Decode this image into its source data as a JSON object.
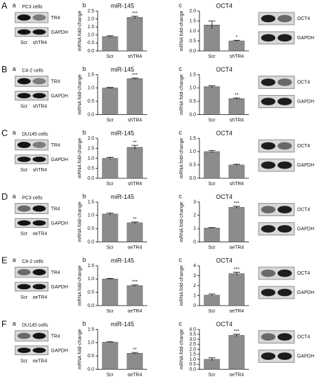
{
  "rows": [
    {
      "letter": "A",
      "panel_a": "a",
      "cells": "PC3 cells",
      "bands": [
        "TR4",
        "GAPDH"
      ],
      "lanes": [
        "Scr",
        "shTR4"
      ],
      "panel_b": "b",
      "panel_c": "c",
      "oct4_bands": [
        "OCT4",
        "GAPDH"
      ]
    },
    {
      "letter": "B",
      "panel_a": "a",
      "cells": "C4-2 cells",
      "bands": [
        "TR4",
        "GAPDH"
      ],
      "lanes": [
        "Scr",
        "shTR4"
      ],
      "panel_b": "b",
      "panel_c": "c",
      "oct4_bands": [
        "OCT4",
        "GAPDH"
      ]
    },
    {
      "letter": "C",
      "panel_a": "a",
      "cells": "DU145 cells",
      "bands": [
        "TR4",
        "GAPDH"
      ],
      "lanes": [
        "Scr",
        "shTR4"
      ],
      "panel_b": "b",
      "panel_c": "c",
      "oct4_bands": [
        "OCT4",
        "GAPDH"
      ]
    },
    {
      "letter": "D",
      "panel_a": "a",
      "cells": "PC3 cells",
      "bands": [
        "TR4",
        "GAPDH"
      ],
      "lanes": [
        "Scr",
        "oeTR4"
      ],
      "panel_b": "b",
      "panel_c": "c",
      "oct4_bands": [
        "OCT4",
        "GAPDH"
      ]
    },
    {
      "letter": "E",
      "panel_a": "a",
      "cells": "C4-2 cells",
      "bands": [
        "TR4",
        "GAPDH"
      ],
      "lanes": [
        "Scr",
        "oeTR4"
      ],
      "panel_b": "b",
      "panel_c": "c",
      "oct4_bands": [
        "OCT4",
        "GAPDH"
      ]
    },
    {
      "letter": "F",
      "panel_a": "a",
      "cells": "DU145 cells",
      "bands": [
        "TR4",
        "GAPDH"
      ],
      "lanes": [
        "Scr",
        "oeTR4"
      ],
      "panel_b": "b",
      "panel_c": "c",
      "oct4_bands": [
        "OCT4",
        "GAPDH"
      ]
    }
  ],
  "chart_data": [
    {
      "type": "bar",
      "title": "miR-145",
      "y_label": "mRNA fold-change",
      "categories": [
        "Scr",
        "shTR4"
      ],
      "values": [
        0.9,
        2.1
      ],
      "errors": [
        0.05,
        0.08
      ],
      "annotation": "***",
      "color": "#8c8c8c",
      "ylim": [
        0,
        2.5
      ],
      "yticks": [
        {
          "value": 0,
          "label": "0.0"
        },
        0.5,
        {
          "value": 1,
          "label": "1.0"
        },
        1.5,
        {
          "value": 2,
          "label": "2.0"
        },
        2.5
      ]
    },
    {
      "type": "bar",
      "title": "OCT4",
      "y_label": "mRNA fold-change",
      "categories": [
        "Scr",
        "shTR4"
      ],
      "values": [
        1.3,
        0.5
      ],
      "errors": [
        0.2,
        0.04
      ],
      "annotation": "*",
      "color": "#8c8c8c",
      "ylim": [
        0,
        2
      ],
      "yticks": [
        {
          "value": 0,
          "label": "0.0"
        },
        0.5,
        {
          "value": 1,
          "label": "1.0"
        },
        1.5,
        {
          "value": 2,
          "label": "2.0"
        }
      ]
    },
    {
      "type": "bar",
      "title": "miR-145",
      "y_label": "mRNA fold-change",
      "categories": [
        "Scr",
        "shTR4"
      ],
      "values": [
        1.0,
        1.35
      ],
      "errors": [
        0.02,
        0.03
      ],
      "annotation": "***",
      "color": "#8c8c8c",
      "ylim": [
        0,
        1.5
      ],
      "yticks": [
        {
          "value": 0,
          "label": "0.0"
        },
        0.5,
        {
          "value": 1,
          "label": "1.0"
        },
        1.5
      ]
    },
    {
      "type": "bar",
      "title": "OCT4",
      "y_label": "mRNA fold-change",
      "categories": [
        "Scr",
        "shTR4"
      ],
      "values": [
        1.05,
        0.6
      ],
      "errors": [
        0.04,
        0.03
      ],
      "annotation": "**",
      "color": "#8c8c8c",
      "ylim": [
        0,
        1.5
      ],
      "yticks": [
        {
          "value": 0,
          "label": "0.0"
        },
        0.5,
        {
          "value": 1,
          "label": "1.0"
        },
        1.5
      ]
    },
    {
      "type": "bar",
      "title": "miR-145",
      "y_label": "mRNA fold-change",
      "categories": [
        "Scr",
        "shTR4"
      ],
      "values": [
        1.0,
        1.55
      ],
      "errors": [
        0.05,
        0.1
      ],
      "annotation": "**",
      "color": "#8c8c8c",
      "ylim": [
        0,
        2
      ],
      "yticks": [
        {
          "value": 0,
          "label": "0.0"
        },
        0.5,
        {
          "value": 1,
          "label": "1.0"
        },
        1.5,
        {
          "value": 2,
          "label": "2.0"
        }
      ]
    },
    {
      "type": "bar",
      "title": "OCT4",
      "y_label": "mRNA fold-change",
      "categories": [
        "Scr",
        "shTR4"
      ],
      "values": [
        1.0,
        0.5
      ],
      "errors": [
        0.05,
        0.03
      ],
      "color": "#8c8c8c",
      "ylim": [
        0,
        1.5
      ],
      "yticks": [
        {
          "value": 0,
          "label": "0.0"
        },
        0.5,
        {
          "value": 1,
          "label": "1.0"
        },
        1.5
      ]
    },
    {
      "type": "bar",
      "title": "miR-145",
      "y_label": "mRNA fold-change",
      "categories": [
        "Scr",
        "oeTR4"
      ],
      "values": [
        1.05,
        0.72
      ],
      "errors": [
        0.04,
        0.03
      ],
      "annotation": "**",
      "color": "#8c8c8c",
      "ylim": [
        0,
        1.5
      ],
      "yticks": [
        {
          "value": 0,
          "label": "0.0"
        },
        0.5,
        {
          "value": 1,
          "label": "1.0"
        },
        1.5
      ]
    },
    {
      "type": "bar",
      "title": "OCT4",
      "y_label": "mRNA fold-change",
      "categories": [
        "Scr",
        "oeTR4"
      ],
      "values": [
        1.05,
        2.6
      ],
      "errors": [
        0.03,
        0.08
      ],
      "annotation": "***",
      "color": "#8c8c8c",
      "ylim": [
        0,
        3
      ],
      "yticks": [
        0,
        1,
        2,
        3
      ]
    },
    {
      "type": "bar",
      "title": "miR-145",
      "y_label": "mRNA fold-change",
      "categories": [
        "Scr",
        "oeTR4"
      ],
      "values": [
        1.0,
        0.75
      ],
      "errors": [
        0.02,
        0.03
      ],
      "annotation": "***",
      "color": "#8c8c8c",
      "ylim": [
        0,
        1.5
      ],
      "yticks": [
        {
          "value": 0,
          "label": "0.0"
        },
        0.5,
        {
          "value": 1,
          "label": "1.0"
        },
        1.5
      ]
    },
    {
      "type": "bar",
      "title": "OCT4",
      "y_label": "mRNA fold-change",
      "categories": [
        "Scr",
        "oeTR4"
      ],
      "values": [
        1.05,
        3.2
      ],
      "errors": [
        0.12,
        0.15
      ],
      "annotation": "***",
      "color": "#8c8c8c",
      "ylim": [
        0,
        4
      ],
      "yticks": [
        0,
        1,
        2,
        3,
        4
      ]
    },
    {
      "type": "bar",
      "title": "miR-145",
      "y_label": "mRNA fold-change",
      "categories": [
        "Scr",
        "oeTR4"
      ],
      "values": [
        1.02,
        0.6
      ],
      "errors": [
        0.02,
        0.03
      ],
      "annotation": "**",
      "color": "#8c8c8c",
      "ylim": [
        0,
        1.5
      ],
      "yticks": [
        {
          "value": 0,
          "label": "0.0"
        },
        0.5,
        {
          "value": 1,
          "label": "1.0"
        },
        1.5
      ]
    },
    {
      "type": "bar",
      "title": "OCT4",
      "y_label": "mRNA fold-change",
      "categories": [
        "Scr",
        "oeTR4"
      ],
      "values": [
        1.0,
        3.4
      ],
      "errors": [
        0.15,
        0.12
      ],
      "annotation": "***",
      "color": "#8c8c8c",
      "ylim": [
        0,
        4
      ],
      "yticks": [
        {
          "value": 0,
          "label": "0.0"
        },
        0.5,
        {
          "value": 1,
          "label": "1.0"
        },
        1.5,
        {
          "value": 2,
          "label": "2.0"
        },
        2.5,
        {
          "value": 3,
          "label": "3.0"
        },
        3.5,
        {
          "value": 4,
          "label": "4.0"
        }
      ]
    }
  ]
}
